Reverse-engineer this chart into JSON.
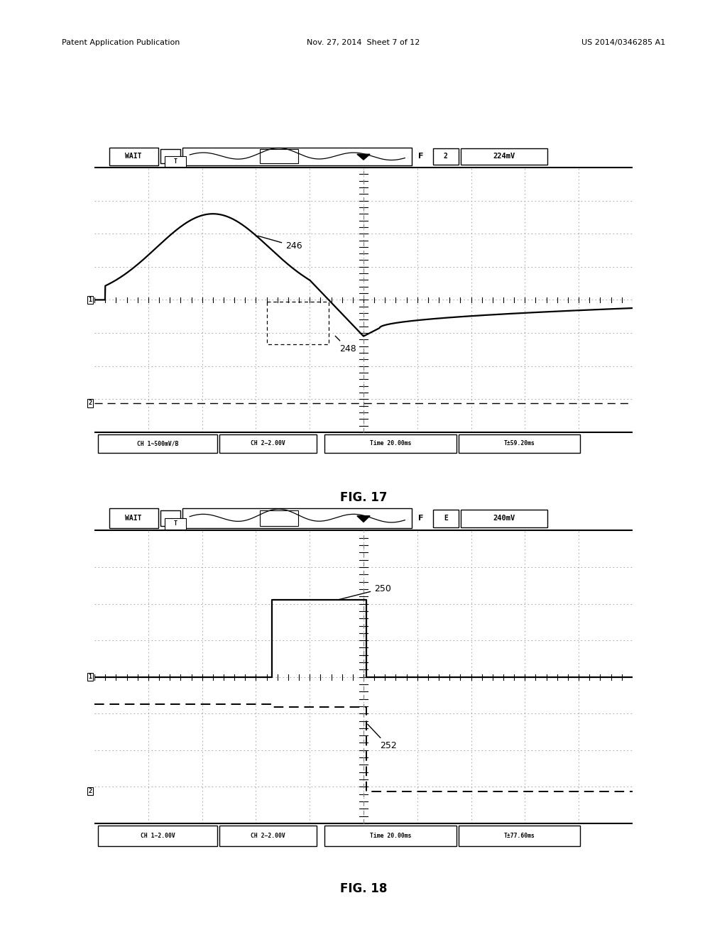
{
  "page_header_left": "Patent Application Publication",
  "page_header_mid": "Nov. 27, 2014  Sheet 7 of 12",
  "page_header_right": "US 2014/0346285 A1",
  "fig17_title": "FIG. 17",
  "fig18_title": "FIG. 18",
  "fig17_voltage": "224mV",
  "fig17_ch1": "CH 1~500mV/B",
  "fig17_ch2": "CH 2−2.00V",
  "fig17_time": "Time 20.00ms",
  "fig17_trig": "T±59.20ms",
  "fig17_label1": "246",
  "fig17_label2": "248",
  "fig18_voltage": "240mV",
  "fig18_ch1": "CH 1−2.00V",
  "fig18_ch2": "CH 2−2.00V",
  "fig18_time": "Time 20.00ms",
  "fig18_trig": "T±77.60ms",
  "fig18_label1": "250",
  "fig18_label2": "252",
  "bg_color": "#ffffff"
}
